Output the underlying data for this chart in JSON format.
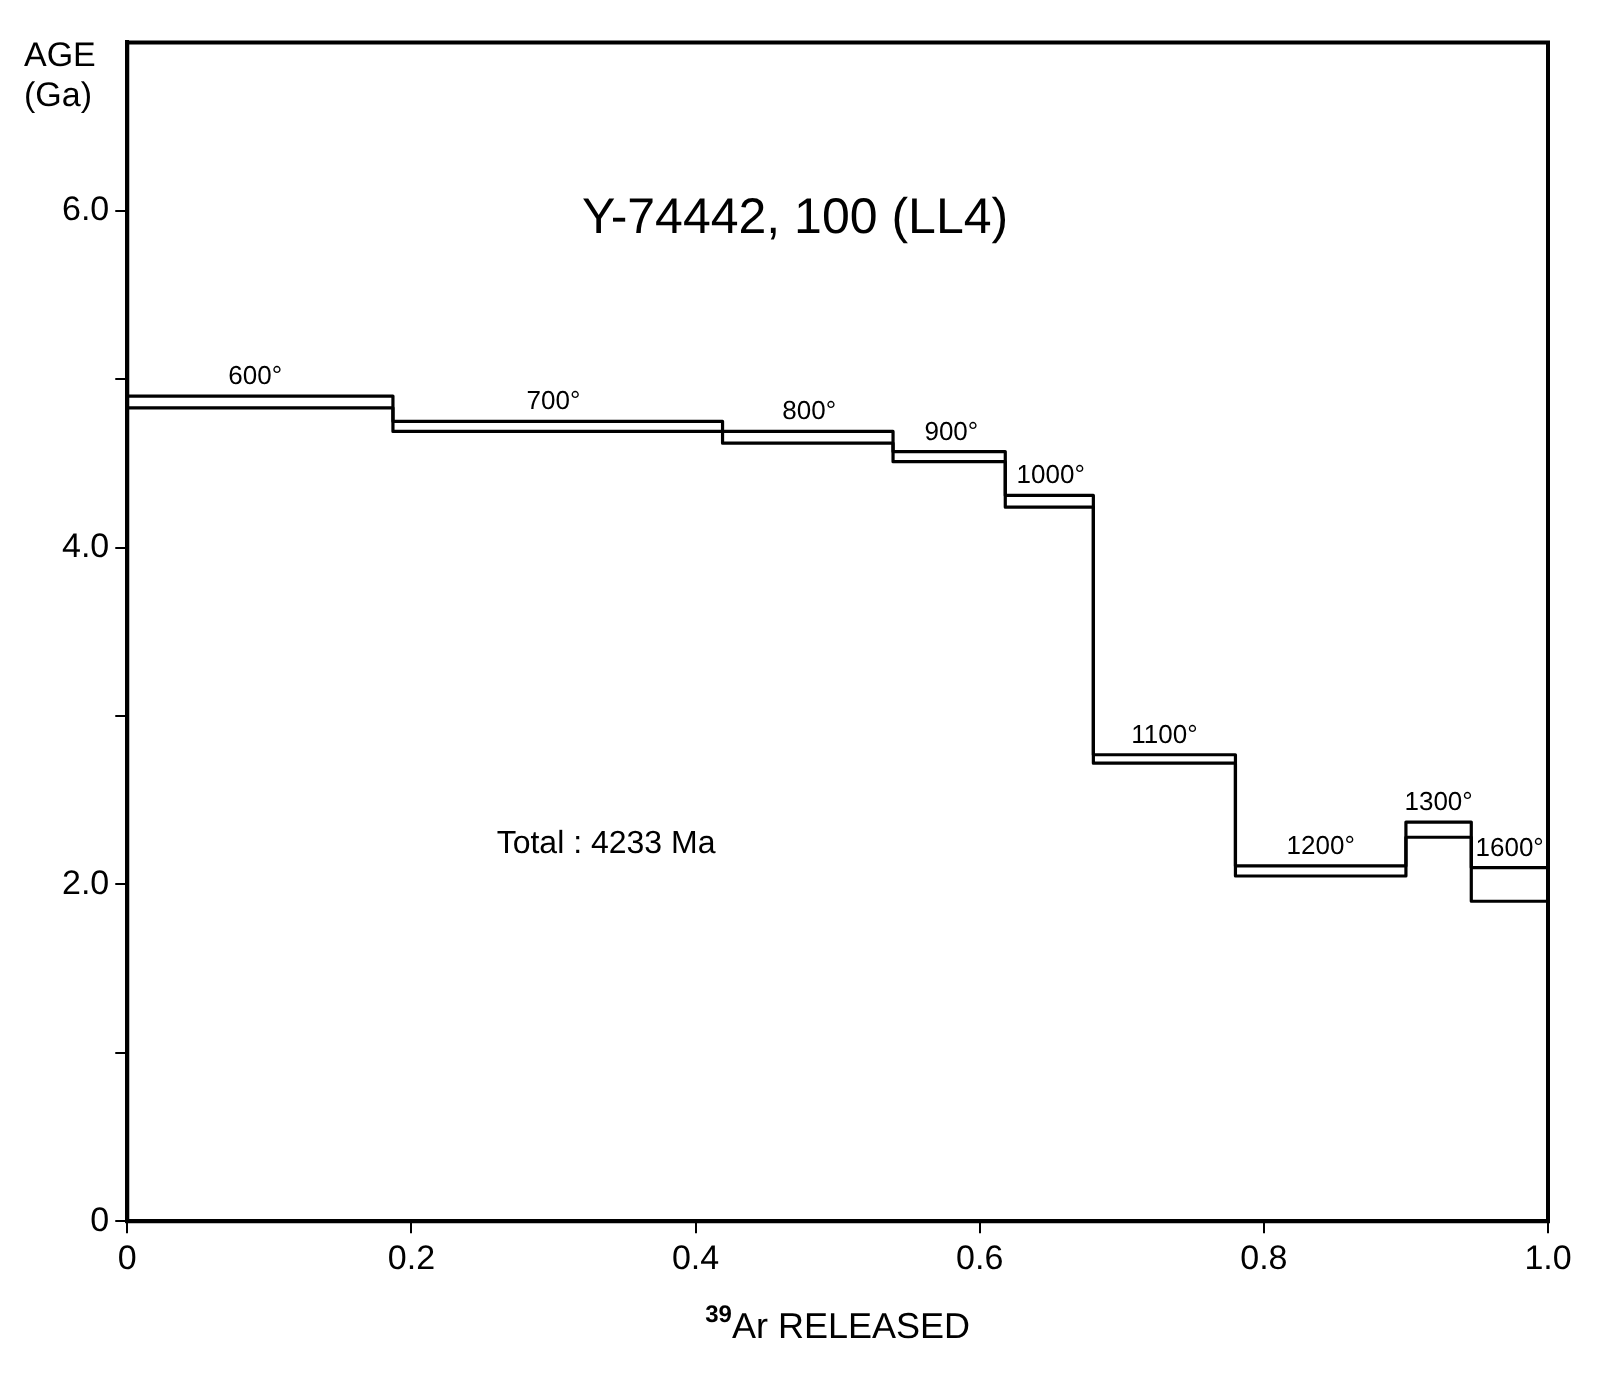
{
  "chart_data": {
    "type": "step",
    "title": "Y-74442, 100 (LL4)",
    "xlabel": "$^{39}$Ar RELEASED",
    "ylabel": "AGE\n(Ga)",
    "x": [
      0,
      0.187,
      0.419,
      0.539,
      0.618,
      0.68,
      0.78,
      0.9,
      0.946,
      1.0
    ],
    "series": [
      {
        "color": "#000000",
        "values": [
          4.9,
          4.75,
          4.69,
          4.57,
          4.31,
          2.77,
          2.11,
          2.37,
          2.1,
          2.1
        ]
      },
      {
        "color": "#000000",
        "values": [
          4.83,
          4.69,
          4.62,
          4.51,
          4.24,
          2.72,
          2.05,
          2.28,
          1.9,
          1.9
        ]
      }
    ],
    "xlim": [
      0,
      1.0
    ],
    "xticks": [
      0,
      0.2,
      0.4,
      0.6,
      0.8,
      {
        "value": 1.0,
        "label": "1.0"
      }
    ],
    "ylim": [
      0,
      7
    ],
    "yticks": [
      0,
      {
        "value": 1,
        "label": null
      },
      {
        "value": 2,
        "label": "2.0"
      },
      {
        "value": 3,
        "label": null
      },
      {
        "value": 4,
        "label": "4.0"
      },
      {
        "value": 5,
        "label": null
      },
      {
        "value": 6,
        "label": "6.0"
      }
    ],
    "annotations": [
      {
        "text": "600°",
        "x": 0.09,
        "y": 4.9
      },
      {
        "text": "700°",
        "x": 0.3,
        "y": 4.75
      },
      {
        "text": "800°",
        "x": 0.48,
        "y": 4.69
      },
      {
        "text": "900°",
        "x": 0.58,
        "y": 4.57
      },
      {
        "text": "1000°",
        "x": 0.65,
        "y": 4.31
      },
      {
        "text": "1100°",
        "x": 0.73,
        "y": 2.77
      },
      {
        "text": "1200°",
        "x": 0.84,
        "y": 2.11
      },
      {
        "text": "1300°",
        "x": 0.923,
        "y": 2.37
      },
      {
        "text": "1600°",
        "x": 0.973,
        "y": 2.1
      },
      "Total : 4233 Ma"
    ],
    "grid": false,
    "legend": false,
    "marker": "none",
    "line_style": "solid"
  }
}
